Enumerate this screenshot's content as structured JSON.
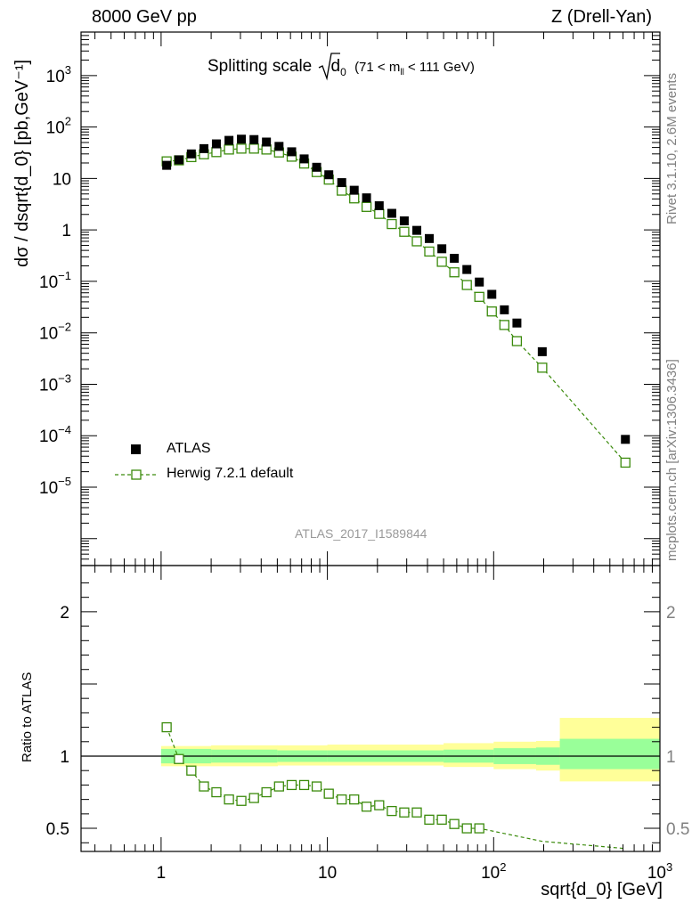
{
  "header": {
    "left": "8000 GeV pp",
    "right": "Z (Drell-Yan)"
  },
  "title": {
    "main": "Splitting scale",
    "root_symbol": "d",
    "root_sub": "0",
    "range_prefix": "(71 < m",
    "range_sub": "ll",
    "range_suffix": " < 111 GeV)"
  },
  "side_labels": {
    "rivet": "Rivet 3.1.10,  2.6M events",
    "mcplots": "mcplots.cern.ch [arXiv:1306.3436]"
  },
  "analysis_id": "ATLAS_2017_I1589844",
  "axes": {
    "y_label_top": "dσ / dsqrt{d_0} [pb,GeV⁻¹]",
    "y_label_bottom": "Ratio to ATLAS",
    "x_label": "sqrt{d_0} [GeV]"
  },
  "legend": {
    "data": "ATLAS",
    "mc": "Herwig 7.2.1 default"
  },
  "colors": {
    "data": "#000000",
    "mc": "#3a8a0b",
    "band_inner": "#99ff99",
    "band_outer": "#ffff99"
  },
  "chart_data": [
    {
      "type": "scatter",
      "panel": "main",
      "x_scale": "log",
      "y_scale": "log",
      "xlim": [
        0.33,
        1000
      ],
      "ylim": [
        3e-07,
        7000
      ],
      "x_ticks": [
        "1",
        "10",
        "10²",
        "10³"
      ],
      "y_ticks": [
        "10⁻⁵",
        "10⁻⁴",
        "10⁻³",
        "10⁻²",
        "10⁻¹",
        "1",
        "10",
        "10²",
        "10³"
      ],
      "legend_position": "lower-left",
      "series": [
        {
          "name": "ATLAS",
          "marker": "filled-square",
          "x": [
            1.08,
            1.28,
            1.52,
            1.81,
            2.15,
            2.56,
            3.04,
            3.62,
            4.3,
            5.12,
            6.1,
            7.25,
            8.62,
            10.2,
            12.2,
            14.5,
            17.2,
            20.5,
            24.4,
            29.0,
            34.5,
            41.0,
            48.8,
            58.0,
            69.0,
            82.0,
            97.5,
            116,
            138,
            196,
            620
          ],
          "y": [
            18,
            23,
            30,
            38,
            47,
            55,
            58,
            57,
            51,
            42,
            33,
            24,
            16.5,
            11.8,
            8.3,
            5.9,
            4.2,
            2.95,
            2.1,
            1.5,
            0.98,
            0.68,
            0.43,
            0.28,
            0.17,
            0.097,
            0.056,
            0.028,
            0.0155,
            0.0043,
            8.5e-05
          ]
        },
        {
          "name": "Herwig 7.2.1 default",
          "marker": "open-square",
          "line": "dashed",
          "x": [
            1.08,
            1.28,
            1.52,
            1.81,
            2.15,
            2.56,
            3.04,
            3.62,
            4.3,
            5.12,
            6.1,
            7.25,
            8.62,
            10.2,
            12.2,
            14.5,
            17.2,
            20.5,
            24.4,
            29.0,
            34.5,
            41.0,
            48.8,
            58.0,
            69.0,
            82.0,
            97.5,
            116,
            138,
            196,
            620
          ],
          "y": [
            21.5,
            22.5,
            26,
            29.5,
            32.5,
            36.5,
            38,
            38,
            36.5,
            32,
            26.5,
            19.5,
            13.3,
            9.5,
            5.8,
            4.1,
            2.8,
            2.05,
            1.3,
            0.92,
            0.6,
            0.38,
            0.24,
            0.15,
            0.085,
            0.05,
            0.026,
            0.0142,
            0.0069,
            0.0021,
            3e-05
          ]
        }
      ]
    },
    {
      "type": "scatter",
      "panel": "ratio",
      "x_scale": "log",
      "y_scale": "linear",
      "xlim": [
        0.33,
        1000
      ],
      "ylim": [
        0.34,
        2.32
      ],
      "x_ticks": [
        "1",
        "10",
        "10²",
        "10³"
      ],
      "y_ticks": [
        "0.5",
        "1",
        "2"
      ],
      "series": [
        {
          "name": "Herwig 7.2.1 default",
          "marker": "open-square",
          "line": "dashed",
          "x": [
            1.08,
            1.28,
            1.52,
            1.81,
            2.15,
            2.56,
            3.04,
            3.62,
            4.3,
            5.12,
            6.1,
            7.25,
            8.62,
            10.2,
            12.2,
            14.5,
            17.2,
            20.5,
            24.4,
            29.0,
            34.5,
            41.0,
            48.8,
            58.0,
            69.0,
            82.0,
            196,
            620
          ],
          "y": [
            1.2,
            0.98,
            0.9,
            0.79,
            0.75,
            0.7,
            0.69,
            0.71,
            0.75,
            0.79,
            0.8,
            0.8,
            0.79,
            0.74,
            0.7,
            0.7,
            0.65,
            0.66,
            0.62,
            0.61,
            0.61,
            0.56,
            0.56,
            0.53,
            0.5,
            0.5,
            0.41,
            0.36
          ]
        }
      ],
      "uncertainty_bands": {
        "x_edges": [
          1.0,
          2.0,
          5.0,
          10,
          50,
          100,
          180,
          250,
          1000
        ],
        "inner_lo": [
          0.95,
          0.955,
          0.96,
          0.96,
          0.955,
          0.945,
          0.94,
          0.91,
          0.91
        ],
        "inner_hi": [
          1.05,
          1.045,
          1.04,
          1.04,
          1.045,
          1.055,
          1.06,
          1.12,
          1.12
        ],
        "outer_lo": [
          0.93,
          0.93,
          0.935,
          0.935,
          0.925,
          0.91,
          0.9,
          0.825,
          0.825
        ],
        "outer_hi": [
          1.07,
          1.075,
          1.075,
          1.08,
          1.09,
          1.1,
          1.105,
          1.265,
          1.265
        ]
      }
    }
  ]
}
